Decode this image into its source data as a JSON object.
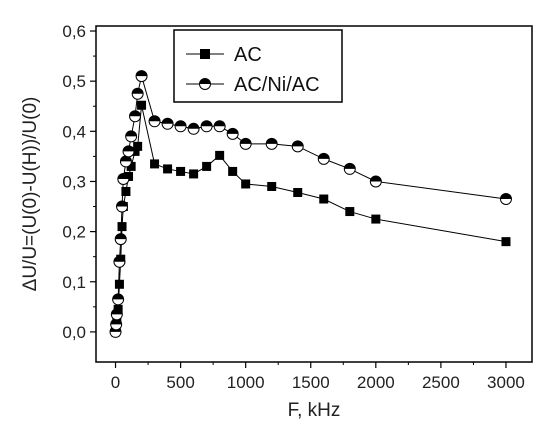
{
  "chart_data": {
    "type": "line",
    "xlabel": "F, kHz",
    "ylabel": "ΔU/U=(U(0)-U(H))/U(0)",
    "xlim": [
      -150,
      3200
    ],
    "ylim": [
      -0.06,
      0.61
    ],
    "xticks": [
      0,
      500,
      1000,
      1500,
      2000,
      2500,
      3000
    ],
    "xtick_labels": [
      "0",
      "500",
      "1000",
      "1500",
      "2000",
      "2500",
      "3000"
    ],
    "yticks": [
      0.0,
      0.1,
      0.2,
      0.3,
      0.4,
      0.5,
      0.6
    ],
    "ytick_labels": [
      "0,0",
      "0,1",
      "0,2",
      "0,3",
      "0,4",
      "0,5",
      "0,6"
    ],
    "grid": false,
    "legend_position": "top-right",
    "series": [
      {
        "name": "AC",
        "marker": "square",
        "color": "#000000",
        "x": [
          0,
          5,
          10,
          20,
          30,
          40,
          50,
          60,
          80,
          100,
          120,
          150,
          170,
          200,
          300,
          400,
          500,
          600,
          700,
          800,
          900,
          1000,
          1200,
          1400,
          1600,
          1800,
          2000,
          3000
        ],
        "y": [
          0.0,
          0.01,
          0.02,
          0.045,
          0.095,
          0.145,
          0.21,
          0.25,
          0.28,
          0.31,
          0.33,
          0.36,
          0.37,
          0.452,
          0.335,
          0.325,
          0.32,
          0.315,
          0.33,
          0.352,
          0.32,
          0.295,
          0.29,
          0.278,
          0.265,
          0.24,
          0.225,
          0.18
        ]
      },
      {
        "name": "AC/Ni/AC",
        "marker": "half-filled-circle",
        "color": "#000000",
        "x": [
          0,
          5,
          10,
          20,
          30,
          40,
          50,
          60,
          80,
          100,
          120,
          150,
          170,
          200,
          300,
          400,
          500,
          600,
          700,
          800,
          900,
          1000,
          1200,
          1400,
          1600,
          1800,
          2000,
          3000
        ],
        "y": [
          0.0,
          0.015,
          0.035,
          0.065,
          0.14,
          0.185,
          0.25,
          0.305,
          0.34,
          0.36,
          0.39,
          0.43,
          0.475,
          0.51,
          0.42,
          0.415,
          0.41,
          0.405,
          0.41,
          0.41,
          0.395,
          0.375,
          0.375,
          0.37,
          0.345,
          0.325,
          0.3,
          0.265
        ]
      }
    ]
  }
}
